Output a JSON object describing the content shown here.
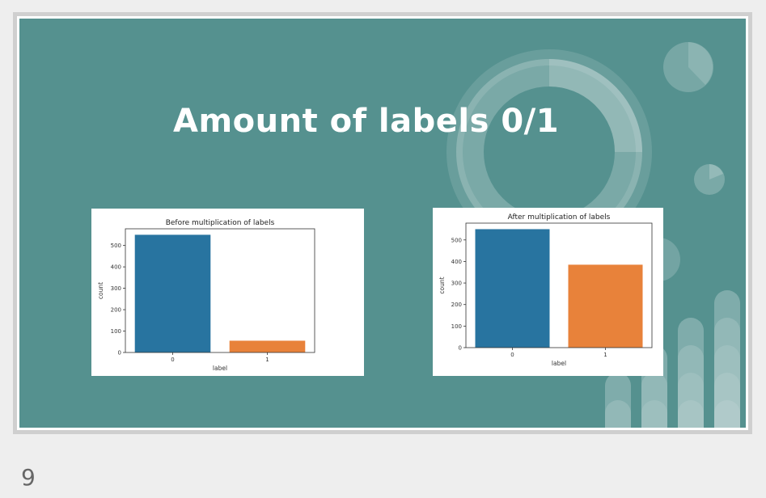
{
  "slide": {
    "title": "Amount of labels 0/1",
    "page_number": "9",
    "background_color": "#55918f"
  },
  "chart_data": [
    {
      "type": "bar",
      "title": "Before multiplication of labels",
      "xlabel": "label",
      "ylabel": "count",
      "categories": [
        "0",
        "1"
      ],
      "values": [
        550,
        55
      ],
      "colors": [
        "#2874a0",
        "#e8823a"
      ],
      "ylim": [
        0,
        578
      ],
      "yticks": [
        0,
        100,
        200,
        300,
        400,
        500
      ],
      "grid": false
    },
    {
      "type": "bar",
      "title": "After multiplication of labels",
      "xlabel": "label",
      "ylabel": "count",
      "categories": [
        "0",
        "1"
      ],
      "values": [
        550,
        385
      ],
      "colors": [
        "#2874a0",
        "#e8823a"
      ],
      "ylim": [
        0,
        578
      ],
      "yticks": [
        0,
        100,
        200,
        300,
        400,
        500
      ],
      "grid": false
    }
  ]
}
